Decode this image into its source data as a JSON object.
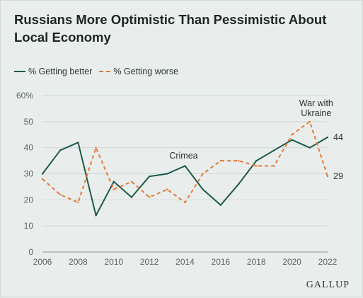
{
  "chart_data": {
    "type": "line",
    "title": "Russians More Optimistic Than Pessimistic About Local Economy",
    "xlabel": "",
    "ylabel": "",
    "ylim": [
      0,
      60
    ],
    "xlim": [
      2006,
      2022
    ],
    "yticks": [
      "0",
      "10",
      "20",
      "30",
      "40",
      "50",
      "60%"
    ],
    "xticks": [
      "2006",
      "2008",
      "2010",
      "2012",
      "2014",
      "2016",
      "2018",
      "2020",
      "2022"
    ],
    "grid": true,
    "legend_position": "top-left",
    "series": [
      {
        "name": "% Getting better",
        "style": "solid",
        "color": "#1f5a4b",
        "end_label": "44",
        "points": [
          [
            2006,
            30
          ],
          [
            2007,
            39
          ],
          [
            2008,
            42
          ],
          [
            2009,
            14
          ],
          [
            2010,
            27
          ],
          [
            2011,
            21
          ],
          [
            2012,
            29
          ],
          [
            2013,
            30
          ],
          [
            2014,
            33
          ],
          [
            2015,
            24
          ],
          [
            2016,
            18
          ],
          [
            2017,
            26
          ],
          [
            2018,
            35
          ],
          [
            2019,
            39
          ],
          [
            2020,
            43
          ],
          [
            2021,
            40
          ],
          [
            2022,
            44
          ]
        ]
      },
      {
        "name": "% Getting worse",
        "style": "dashed",
        "color": "#e07b39",
        "end_label": "29",
        "points": [
          [
            2006,
            28
          ],
          [
            2007,
            22
          ],
          [
            2008,
            19
          ],
          [
            2009,
            40
          ],
          [
            2010,
            24
          ],
          [
            2011,
            27
          ],
          [
            2012,
            21
          ],
          [
            2013,
            24
          ],
          [
            2014,
            19
          ],
          [
            2015,
            30
          ],
          [
            2016,
            35
          ],
          [
            2017,
            35
          ],
          [
            2018,
            33
          ],
          [
            2019,
            33
          ],
          [
            2020,
            45
          ],
          [
            2021,
            50
          ],
          [
            2022,
            29
          ]
        ]
      }
    ],
    "annotations": [
      {
        "text": "Crimea",
        "x": 2014,
        "y": 35
      },
      {
        "text_lines": [
          "War with",
          "Ukraine"
        ],
        "x": 2021,
        "y": 52
      }
    ]
  },
  "brand": "GALLUP"
}
